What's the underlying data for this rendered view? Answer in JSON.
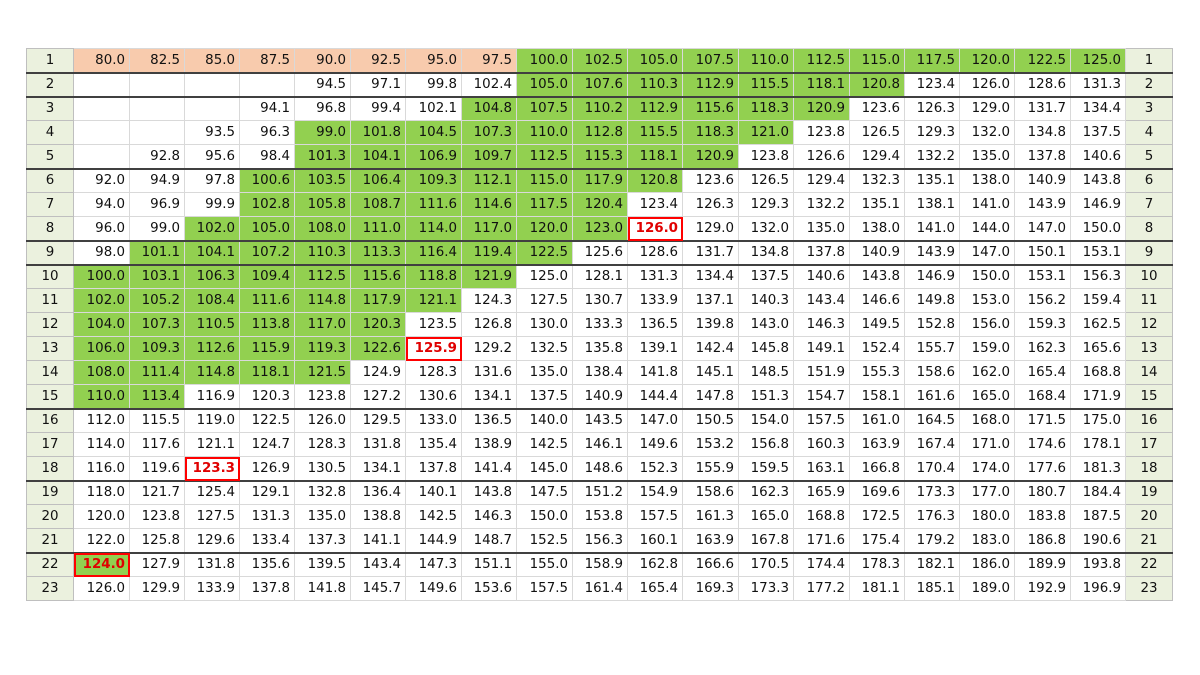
{
  "colors": {
    "green": "#92d050",
    "peach": "#f8cbad",
    "header": "#ebf1de",
    "mark": "#ff0000"
  },
  "sheet": {
    "rows": [
      {
        "label": "1",
        "cells": [
          "80.0",
          "82.5",
          "85.0",
          "87.5",
          "90.0",
          "92.5",
          "95.0",
          "97.5",
          "100.0",
          "102.5",
          "105.0",
          "107.5",
          "110.0",
          "112.5",
          "115.0",
          "117.5",
          "120.0",
          "122.5",
          "125.0"
        ],
        "fills": "pppppppp gggggggggg ."
      },
      {
        "label": "2",
        "cells": [
          "",
          "",
          "",
          "",
          "94.5",
          "97.1",
          "99.8",
          "102.4",
          "105.0",
          "107.6",
          "110.3",
          "112.9",
          "115.5",
          "118.1",
          "120.8",
          "123.4",
          "126.0",
          "128.6",
          "131.3"
        ]
      },
      {
        "label": "3",
        "cells": [
          "",
          "",
          "",
          "94.1",
          "96.8",
          "99.4",
          "102.1",
          "104.8",
          "107.5",
          "110.2",
          "112.9",
          "115.6",
          "118.3",
          "120.9",
          "123.6",
          "126.3",
          "129.0",
          "131.7",
          "134.4"
        ]
      },
      {
        "label": "4",
        "cells": [
          "",
          "",
          "93.5",
          "96.3",
          "99.0",
          "101.8",
          "104.5",
          "107.3",
          "110.0",
          "112.8",
          "115.5",
          "118.3",
          "121.0",
          "123.8",
          "126.5",
          "129.3",
          "132.0",
          "134.8",
          "137.5"
        ]
      },
      {
        "label": "5",
        "cells": [
          "",
          "92.8",
          "95.6",
          "98.4",
          "101.3",
          "104.1",
          "106.9",
          "109.7",
          "112.5",
          "115.3",
          "118.1",
          "120.9",
          "123.8",
          "126.6",
          "129.4",
          "132.2",
          "135.0",
          "137.8",
          "140.6"
        ]
      },
      {
        "label": "6",
        "cells": [
          "92.0",
          "94.9",
          "97.8",
          "100.6",
          "103.5",
          "106.4",
          "109.3",
          "112.1",
          "115.0",
          "117.9",
          "120.8",
          "123.6",
          "126.5",
          "129.4",
          "132.3",
          "135.1",
          "138.0",
          "140.9",
          "143.8"
        ]
      },
      {
        "label": "7",
        "cells": [
          "94.0",
          "96.9",
          "99.9",
          "102.8",
          "105.8",
          "108.7",
          "111.6",
          "114.6",
          "117.5",
          "120.4",
          "123.4",
          "126.3",
          "129.3",
          "132.2",
          "135.1",
          "138.1",
          "141.0",
          "143.9",
          "146.9"
        ]
      },
      {
        "label": "8",
        "cells": [
          "96.0",
          "99.0",
          "102.0",
          "105.0",
          "108.0",
          "111.0",
          "114.0",
          "117.0",
          "120.0",
          "123.0",
          "126.0",
          "129.0",
          "132.0",
          "135.0",
          "138.0",
          "141.0",
          "144.0",
          "147.0",
          "150.0"
        ]
      },
      {
        "label": "9",
        "cells": [
          "98.0",
          "101.1",
          "104.1",
          "107.2",
          "110.3",
          "113.3",
          "116.4",
          "119.4",
          "122.5",
          "125.6",
          "128.6",
          "131.7",
          "134.8",
          "137.8",
          "140.9",
          "143.9",
          "147.0",
          "150.1",
          "153.1"
        ]
      },
      {
        "label": "10",
        "cells": [
          "100.0",
          "103.1",
          "106.3",
          "109.4",
          "112.5",
          "115.6",
          "118.8",
          "121.9",
          "125.0",
          "128.1",
          "131.3",
          "134.4",
          "137.5",
          "140.6",
          "143.8",
          "146.9",
          "150.0",
          "153.1",
          "156.3"
        ]
      },
      {
        "label": "11",
        "cells": [
          "102.0",
          "105.2",
          "108.4",
          "111.6",
          "114.8",
          "117.9",
          "121.1",
          "124.3",
          "127.5",
          "130.7",
          "133.9",
          "137.1",
          "140.3",
          "143.4",
          "146.6",
          "149.8",
          "153.0",
          "156.2",
          "159.4"
        ]
      },
      {
        "label": "12",
        "cells": [
          "104.0",
          "107.3",
          "110.5",
          "113.8",
          "117.0",
          "120.3",
          "123.5",
          "126.8",
          "130.0",
          "133.3",
          "136.5",
          "139.8",
          "143.0",
          "146.3",
          "149.5",
          "152.8",
          "156.0",
          "159.3",
          "162.5"
        ]
      },
      {
        "label": "13",
        "cells": [
          "106.0",
          "109.3",
          "112.6",
          "115.9",
          "119.3",
          "122.6",
          "125.9",
          "129.2",
          "132.5",
          "135.8",
          "139.1",
          "142.4",
          "145.8",
          "149.1",
          "152.4",
          "155.7",
          "159.0",
          "162.3",
          "165.6"
        ]
      },
      {
        "label": "14",
        "cells": [
          "108.0",
          "111.4",
          "114.8",
          "118.1",
          "121.5",
          "124.9",
          "128.3",
          "131.6",
          "135.0",
          "138.4",
          "141.8",
          "145.1",
          "148.5",
          "151.9",
          "155.3",
          "158.6",
          "162.0",
          "165.4",
          "168.8"
        ]
      },
      {
        "label": "15",
        "cells": [
          "110.0",
          "113.4",
          "116.9",
          "120.3",
          "123.8",
          "127.2",
          "130.6",
          "134.1",
          "137.5",
          "140.9",
          "144.4",
          "147.8",
          "151.3",
          "154.7",
          "158.1",
          "161.6",
          "165.0",
          "168.4",
          "171.9"
        ]
      },
      {
        "label": "16",
        "cells": [
          "112.0",
          "115.5",
          "119.0",
          "122.5",
          "126.0",
          "129.5",
          "133.0",
          "136.5",
          "140.0",
          "143.5",
          "147.0",
          "150.5",
          "154.0",
          "157.5",
          "161.0",
          "164.5",
          "168.0",
          "171.5",
          "175.0"
        ]
      },
      {
        "label": "17",
        "cells": [
          "114.0",
          "117.6",
          "121.1",
          "124.7",
          "128.3",
          "131.8",
          "135.4",
          "138.9",
          "142.5",
          "146.1",
          "149.6",
          "153.2",
          "156.8",
          "160.3",
          "163.9",
          "167.4",
          "171.0",
          "174.6",
          "178.1"
        ]
      },
      {
        "label": "18",
        "cells": [
          "116.0",
          "119.6",
          "123.3",
          "126.9",
          "130.5",
          "134.1",
          "137.8",
          "141.4",
          "145.0",
          "148.6",
          "152.3",
          "155.9",
          "159.5",
          "163.1",
          "166.8",
          "170.4",
          "174.0",
          "177.6",
          "181.3"
        ]
      },
      {
        "label": "19",
        "cells": [
          "118.0",
          "121.7",
          "125.4",
          "129.1",
          "132.8",
          "136.4",
          "140.1",
          "143.8",
          "147.5",
          "151.2",
          "154.9",
          "158.6",
          "162.3",
          "165.9",
          "169.6",
          "173.3",
          "177.0",
          "180.7",
          "184.4"
        ]
      },
      {
        "label": "20",
        "cells": [
          "120.0",
          "123.8",
          "127.5",
          "131.3",
          "135.0",
          "138.8",
          "142.5",
          "146.3",
          "150.0",
          "153.8",
          "157.5",
          "161.3",
          "165.0",
          "168.8",
          "172.5",
          "176.3",
          "180.0",
          "183.8",
          "187.5"
        ]
      },
      {
        "label": "21",
        "cells": [
          "122.0",
          "125.8",
          "129.6",
          "133.4",
          "137.3",
          "141.1",
          "144.9",
          "148.7",
          "152.5",
          "156.3",
          "160.1",
          "163.9",
          "167.8",
          "171.6",
          "175.4",
          "179.2",
          "183.0",
          "186.8",
          "190.6"
        ]
      },
      {
        "label": "22",
        "cells": [
          "124.0",
          "127.9",
          "131.8",
          "135.6",
          "139.5",
          "143.4",
          "147.3",
          "151.1",
          "155.0",
          "158.9",
          "162.8",
          "166.6",
          "170.5",
          "174.4",
          "178.3",
          "182.1",
          "186.0",
          "189.9",
          "193.8"
        ]
      },
      {
        "label": "23",
        "cells": [
          "126.0",
          "129.9",
          "133.9",
          "137.8",
          "141.8",
          "145.7",
          "149.6",
          "153.6",
          "157.5",
          "161.4",
          "165.4",
          "169.3",
          "173.3",
          "177.2",
          "181.1",
          "185.1",
          "189.0",
          "192.9",
          "196.9"
        ]
      }
    ],
    "green_ranges": [
      [
        8,
        18
      ],
      [
        8,
        14
      ],
      [
        7,
        13
      ],
      [
        4,
        12
      ],
      [
        4,
        11
      ],
      [
        3,
        10
      ],
      [
        3,
        9
      ],
      [
        2,
        9
      ],
      [
        1,
        8
      ],
      [
        0,
        7
      ],
      [
        0,
        6
      ],
      [
        0,
        5
      ],
      [
        0,
        5
      ],
      [
        0,
        4
      ],
      [
        0,
        1
      ],
      [],
      [],
      [],
      [],
      [],
      [],
      [
        0,
        0
      ],
      []
    ],
    "peach_range": [
      0,
      7
    ],
    "marked": [
      [
        7,
        10
      ],
      [
        12,
        6
      ],
      [
        17,
        2
      ],
      [
        21,
        0
      ]
    ]
  }
}
